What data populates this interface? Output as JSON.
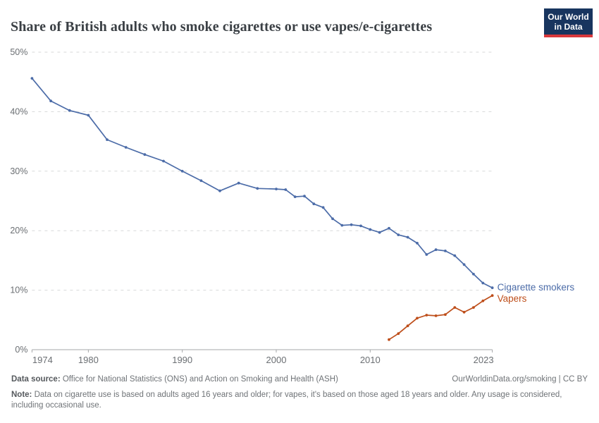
{
  "header": {
    "title": "Share of British adults who smoke cigarettes or use vapes/e-cigarettes",
    "logo": {
      "line1": "Our World",
      "line2": "in Data",
      "bg_color": "#18355f",
      "bar_color": "#d8383c"
    }
  },
  "chart_data": {
    "type": "line",
    "title": "Share of British adults who smoke cigarettes or use vapes/e-cigarettes",
    "xlabel": "",
    "ylabel": "",
    "xlim": [
      1974,
      2023
    ],
    "ylim": [
      0,
      50
    ],
    "grid": "horizontal-dashed",
    "legend_position": "line-end-labels",
    "x_ticks": [
      1974,
      1980,
      1990,
      2000,
      2010,
      2023
    ],
    "y_ticks": [
      0,
      10,
      20,
      30,
      40,
      50
    ],
    "y_tick_suffix": "%",
    "colors": {
      "grid": "#d7d9da",
      "axis": "#a5a7a9",
      "tick_text": "#6b6f73"
    },
    "series": [
      {
        "name": "Cigarette smokers",
        "color": "#4c6ca8",
        "points": [
          [
            1974,
            45.6
          ],
          [
            1976,
            41.8
          ],
          [
            1978,
            40.2
          ],
          [
            1980,
            39.4
          ],
          [
            1982,
            35.3
          ],
          [
            1984,
            34.0
          ],
          [
            1986,
            32.8
          ],
          [
            1988,
            31.7
          ],
          [
            1990,
            30.0
          ],
          [
            1992,
            28.4
          ],
          [
            1994,
            26.7
          ],
          [
            1996,
            28.0
          ],
          [
            1998,
            27.1
          ],
          [
            2000,
            27.0
          ],
          [
            2001,
            26.9
          ],
          [
            2002,
            25.7
          ],
          [
            2003,
            25.8
          ],
          [
            2004,
            24.5
          ],
          [
            2005,
            23.9
          ],
          [
            2006,
            22.0
          ],
          [
            2007,
            20.9
          ],
          [
            2008,
            21.0
          ],
          [
            2009,
            20.8
          ],
          [
            2010,
            20.2
          ],
          [
            2011,
            19.7
          ],
          [
            2012,
            20.4
          ],
          [
            2013,
            19.3
          ],
          [
            2014,
            18.9
          ],
          [
            2015,
            17.9
          ],
          [
            2016,
            16.0
          ],
          [
            2017,
            16.8
          ],
          [
            2018,
            16.6
          ],
          [
            2019,
            15.8
          ],
          [
            2020,
            14.3
          ],
          [
            2021,
            12.7
          ],
          [
            2022,
            11.2
          ],
          [
            2023,
            10.4
          ]
        ]
      },
      {
        "name": "Vapers",
        "color": "#be4e1a",
        "points": [
          [
            2012,
            1.7
          ],
          [
            2013,
            2.7
          ],
          [
            2014,
            4.0
          ],
          [
            2015,
            5.3
          ],
          [
            2016,
            5.8
          ],
          [
            2017,
            5.7
          ],
          [
            2018,
            5.9
          ],
          [
            2019,
            7.1
          ],
          [
            2020,
            6.3
          ],
          [
            2021,
            7.1
          ],
          [
            2022,
            8.2
          ],
          [
            2023,
            9.1
          ]
        ]
      }
    ]
  },
  "footer": {
    "source_label": "Data source:",
    "source_text": " Office for National Statistics (ONS) and Action on Smoking and Health (ASH)",
    "attribution": "OurWorldinData.org/smoking | CC BY",
    "note_label": "Note:",
    "note_text": " Data on cigarette use is based on adults aged 16 years and older; for vapes, it's based on those aged 18 years and older. Any usage is considered, including occasional use."
  }
}
